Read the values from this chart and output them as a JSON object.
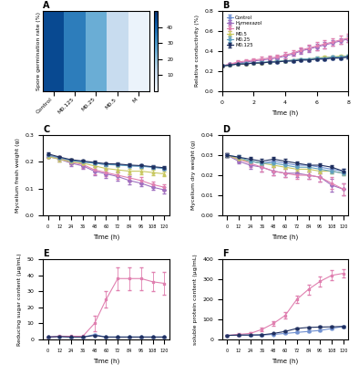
{
  "panel_A": {
    "title": "A",
    "categories": [
      "Control",
      "M0.125",
      "M0.25",
      "M0.5",
      "M"
    ],
    "values": [
      45,
      35,
      25,
      12,
      3
    ],
    "cmap_colors": [
      "#ffffff",
      "#c8d4f0",
      "#8fa8e0",
      "#4060c0",
      "#1020a0"
    ],
    "colorbar_ticks": [
      10,
      20,
      30,
      40
    ],
    "ylabel": "Spore germination rate (%)"
  },
  "panel_B": {
    "title": "B",
    "xlabel": "Time (h)",
    "ylabel": "Relative conductivity (%)",
    "ylim": [
      0.0,
      0.8
    ],
    "xlim": [
      0,
      8
    ],
    "time_points": [
      0,
      0.5,
      1,
      1.5,
      2,
      2.5,
      3,
      3.5,
      4,
      4.5,
      5,
      5.5,
      6,
      6.5,
      7,
      7.5,
      8
    ],
    "series": {
      "Control": {
        "color": "#7090d0",
        "marker": "o",
        "values": [
          0.25,
          0.26,
          0.27,
          0.27,
          0.28,
          0.28,
          0.29,
          0.29,
          0.3,
          0.3,
          0.31,
          0.31,
          0.32,
          0.32,
          0.33,
          0.33,
          0.34
        ],
        "errors": [
          0.01,
          0.01,
          0.01,
          0.01,
          0.01,
          0.01,
          0.01,
          0.01,
          0.01,
          0.01,
          0.01,
          0.01,
          0.01,
          0.01,
          0.01,
          0.01,
          0.01
        ]
      },
      "Hymexazol": {
        "color": "#a070c0",
        "marker": "D",
        "values": [
          0.25,
          0.27,
          0.28,
          0.29,
          0.3,
          0.31,
          0.32,
          0.33,
          0.35,
          0.37,
          0.4,
          0.42,
          0.44,
          0.46,
          0.48,
          0.5,
          0.52
        ],
        "errors": [
          0.01,
          0.01,
          0.02,
          0.02,
          0.02,
          0.02,
          0.02,
          0.02,
          0.02,
          0.02,
          0.03,
          0.03,
          0.03,
          0.03,
          0.03,
          0.03,
          0.03
        ]
      },
      "M": {
        "color": "#e080b0",
        "marker": "s",
        "values": [
          0.25,
          0.27,
          0.29,
          0.3,
          0.31,
          0.32,
          0.33,
          0.34,
          0.36,
          0.38,
          0.41,
          0.43,
          0.45,
          0.47,
          0.49,
          0.51,
          0.53
        ],
        "errors": [
          0.01,
          0.01,
          0.02,
          0.02,
          0.02,
          0.02,
          0.02,
          0.02,
          0.03,
          0.03,
          0.03,
          0.03,
          0.04,
          0.04,
          0.04,
          0.04,
          0.04
        ]
      },
      "M0.5": {
        "color": "#c8c860",
        "marker": "^",
        "values": [
          0.25,
          0.26,
          0.27,
          0.27,
          0.28,
          0.28,
          0.29,
          0.3,
          0.3,
          0.31,
          0.32,
          0.32,
          0.33,
          0.34,
          0.34,
          0.35,
          0.35
        ],
        "errors": [
          0.01,
          0.01,
          0.01,
          0.01,
          0.01,
          0.01,
          0.01,
          0.01,
          0.01,
          0.01,
          0.01,
          0.01,
          0.01,
          0.01,
          0.01,
          0.01,
          0.01
        ]
      },
      "M0.25": {
        "color": "#60a0c0",
        "marker": "o",
        "values": [
          0.25,
          0.26,
          0.27,
          0.28,
          0.28,
          0.29,
          0.29,
          0.3,
          0.3,
          0.31,
          0.32,
          0.32,
          0.33,
          0.33,
          0.34,
          0.34,
          0.35
        ],
        "errors": [
          0.01,
          0.01,
          0.01,
          0.01,
          0.01,
          0.01,
          0.01,
          0.01,
          0.01,
          0.01,
          0.01,
          0.01,
          0.01,
          0.01,
          0.01,
          0.01,
          0.01
        ]
      },
      "M0.125": {
        "color": "#203060",
        "marker": "o",
        "values": [
          0.25,
          0.26,
          0.27,
          0.27,
          0.28,
          0.28,
          0.29,
          0.29,
          0.3,
          0.3,
          0.31,
          0.31,
          0.32,
          0.32,
          0.33,
          0.33,
          0.34
        ],
        "errors": [
          0.01,
          0.01,
          0.01,
          0.01,
          0.01,
          0.01,
          0.01,
          0.01,
          0.01,
          0.01,
          0.01,
          0.01,
          0.01,
          0.01,
          0.01,
          0.01,
          0.01
        ]
      }
    }
  },
  "panel_C": {
    "title": "C",
    "xlabel": "Time (h)",
    "ylabel": "Mycelium fresh weight (g)",
    "ylim": [
      0.0,
      0.3
    ],
    "xlim": [
      -5,
      125
    ],
    "time_points": [
      0,
      12,
      24,
      36,
      48,
      60,
      72,
      84,
      96,
      108,
      120
    ],
    "series": {
      "Control": {
        "color": "#7090d0",
        "values": [
          0.225,
          0.215,
          0.205,
          0.2,
          0.195,
          0.19,
          0.19,
          0.185,
          0.185,
          0.18,
          0.175
        ],
        "errors": [
          0.005,
          0.005,
          0.005,
          0.005,
          0.005,
          0.005,
          0.005,
          0.005,
          0.005,
          0.005,
          0.005
        ]
      },
      "Hymexazol": {
        "color": "#a070c0",
        "values": [
          0.22,
          0.21,
          0.195,
          0.185,
          0.165,
          0.155,
          0.145,
          0.13,
          0.12,
          0.105,
          0.095
        ],
        "errors": [
          0.005,
          0.008,
          0.01,
          0.012,
          0.015,
          0.015,
          0.015,
          0.015,
          0.012,
          0.01,
          0.012
        ]
      },
      "M": {
        "color": "#e080b0",
        "values": [
          0.225,
          0.215,
          0.2,
          0.19,
          0.17,
          0.16,
          0.15,
          0.14,
          0.13,
          0.115,
          0.105
        ],
        "errors": [
          0.005,
          0.008,
          0.01,
          0.012,
          0.015,
          0.015,
          0.015,
          0.015,
          0.012,
          0.01,
          0.012
        ]
      },
      "M0.5": {
        "color": "#c8c860",
        "values": [
          0.22,
          0.21,
          0.2,
          0.195,
          0.185,
          0.175,
          0.17,
          0.165,
          0.165,
          0.16,
          0.155
        ],
        "errors": [
          0.005,
          0.008,
          0.01,
          0.01,
          0.01,
          0.01,
          0.01,
          0.01,
          0.01,
          0.01,
          0.01
        ]
      },
      "M0.25": {
        "color": "#60a0c0",
        "values": [
          0.225,
          0.215,
          0.205,
          0.2,
          0.195,
          0.19,
          0.188,
          0.185,
          0.183,
          0.18,
          0.175
        ],
        "errors": [
          0.005,
          0.005,
          0.005,
          0.005,
          0.005,
          0.005,
          0.005,
          0.005,
          0.005,
          0.005,
          0.005
        ]
      },
      "M0.125": {
        "color": "#203060",
        "values": [
          0.23,
          0.218,
          0.208,
          0.203,
          0.198,
          0.193,
          0.192,
          0.188,
          0.186,
          0.182,
          0.178
        ],
        "errors": [
          0.005,
          0.005,
          0.005,
          0.005,
          0.005,
          0.005,
          0.005,
          0.005,
          0.005,
          0.005,
          0.005
        ]
      }
    }
  },
  "panel_D": {
    "title": "D",
    "xlabel": "Time (h)",
    "ylabel": "Mycelium dry weight (g)",
    "ylim": [
      0.0,
      0.04
    ],
    "xlim": [
      -5,
      125
    ],
    "time_points": [
      0,
      12,
      24,
      36,
      48,
      60,
      72,
      84,
      96,
      108,
      120
    ],
    "series": {
      "Control": {
        "color": "#7090d0",
        "values": [
          0.03,
          0.028,
          0.027,
          0.026,
          0.027,
          0.026,
          0.025,
          0.025,
          0.024,
          0.023,
          0.022
        ],
        "errors": [
          0.001,
          0.001,
          0.001,
          0.001,
          0.001,
          0.001,
          0.001,
          0.001,
          0.001,
          0.001,
          0.001
        ]
      },
      "Hymexazol": {
        "color": "#a070c0",
        "values": [
          0.03,
          0.027,
          0.025,
          0.024,
          0.022,
          0.021,
          0.021,
          0.02,
          0.019,
          0.015,
          0.013
        ],
        "errors": [
          0.001,
          0.001,
          0.002,
          0.002,
          0.002,
          0.002,
          0.002,
          0.002,
          0.002,
          0.003,
          0.003
        ]
      },
      "M": {
        "color": "#e080b0",
        "values": [
          0.03,
          0.028,
          0.026,
          0.024,
          0.022,
          0.021,
          0.02,
          0.02,
          0.019,
          0.016,
          0.013
        ],
        "errors": [
          0.001,
          0.001,
          0.002,
          0.002,
          0.002,
          0.002,
          0.002,
          0.002,
          0.002,
          0.003,
          0.003
        ]
      },
      "M0.5": {
        "color": "#c8c860",
        "values": [
          0.03,
          0.028,
          0.027,
          0.026,
          0.025,
          0.024,
          0.023,
          0.023,
          0.022,
          0.022,
          0.021
        ],
        "errors": [
          0.001,
          0.001,
          0.001,
          0.001,
          0.001,
          0.001,
          0.001,
          0.001,
          0.001,
          0.001,
          0.001
        ]
      },
      "M0.25": {
        "color": "#60a0c0",
        "values": [
          0.03,
          0.029,
          0.027,
          0.026,
          0.026,
          0.025,
          0.024,
          0.024,
          0.023,
          0.022,
          0.021
        ],
        "errors": [
          0.001,
          0.001,
          0.001,
          0.001,
          0.001,
          0.001,
          0.001,
          0.001,
          0.001,
          0.001,
          0.001
        ]
      },
      "M0.125": {
        "color": "#203060",
        "values": [
          0.03,
          0.029,
          0.028,
          0.027,
          0.028,
          0.027,
          0.026,
          0.025,
          0.025,
          0.024,
          0.022
        ],
        "errors": [
          0.001,
          0.001,
          0.001,
          0.001,
          0.001,
          0.001,
          0.001,
          0.001,
          0.001,
          0.001,
          0.001
        ]
      }
    }
  },
  "panel_E": {
    "title": "E",
    "xlabel": "Time (h)",
    "ylabel": "Reducing sugar content (μg/mL)",
    "ylim": [
      0,
      50
    ],
    "xlim": [
      -5,
      125
    ],
    "time_points": [
      0,
      12,
      24,
      36,
      48,
      60,
      72,
      84,
      96,
      108,
      120
    ],
    "series": {
      "Control": {
        "color": "#7090d0",
        "values": [
          1.5,
          1.8,
          1.5,
          1.5,
          3.0,
          1.5,
          1.5,
          1.5,
          1.5,
          1.5,
          1.5
        ],
        "errors": [
          0.3,
          0.3,
          0.3,
          0.3,
          0.5,
          0.3,
          0.3,
          0.3,
          0.3,
          0.3,
          0.3
        ]
      },
      "M": {
        "color": "#e080b0",
        "values": [
          1.5,
          2.0,
          2.0,
          2.0,
          10.0,
          25.0,
          38.0,
          38.0,
          38.0,
          36.0,
          35.0
        ],
        "errors": [
          0.3,
          0.5,
          0.5,
          0.5,
          5.0,
          5.0,
          7.0,
          7.0,
          7.0,
          6.0,
          7.0
        ]
      },
      "M0.125": {
        "color": "#203060",
        "values": [
          1.5,
          1.8,
          1.5,
          1.5,
          2.5,
          1.5,
          1.5,
          1.5,
          1.5,
          1.5,
          1.5
        ],
        "errors": [
          0.3,
          0.3,
          0.3,
          0.3,
          0.5,
          0.3,
          0.3,
          0.3,
          0.3,
          0.3,
          0.3
        ]
      }
    }
  },
  "panel_F": {
    "title": "F",
    "xlabel": "Time (h)",
    "ylabel": "soluble protein content (μg/mL)",
    "ylim": [
      0,
      400
    ],
    "xlim": [
      -5,
      125
    ],
    "time_points": [
      0,
      12,
      24,
      36,
      48,
      60,
      72,
      84,
      96,
      108,
      120
    ],
    "series": {
      "Control": {
        "color": "#7090d0",
        "values": [
          20,
          22,
          22,
          22,
          25,
          30,
          35,
          40,
          45,
          55,
          65
        ],
        "errors": [
          3,
          3,
          3,
          3,
          3,
          3,
          4,
          4,
          5,
          5,
          5
        ]
      },
      "M": {
        "color": "#e080b0",
        "values": [
          20,
          25,
          30,
          50,
          80,
          120,
          200,
          250,
          290,
          320,
          330
        ],
        "errors": [
          3,
          5,
          5,
          8,
          10,
          15,
          20,
          25,
          25,
          25,
          20
        ]
      },
      "M0.125": {
        "color": "#203060",
        "values": [
          20,
          22,
          22,
          23,
          30,
          40,
          55,
          60,
          62,
          63,
          65
        ],
        "errors": [
          3,
          3,
          3,
          3,
          4,
          5,
          5,
          5,
          5,
          5,
          5
        ]
      }
    }
  },
  "legend_order": [
    "Control",
    "Hymexazol",
    "M",
    "M0.5",
    "M0.25",
    "M0.125"
  ],
  "series_colors": {
    "Control": "#7090d0",
    "Hymexazol": "#a070c0",
    "M": "#e080b0",
    "M0.5": "#c8c860",
    "M0.25": "#60a0c0",
    "M0.125": "#203060"
  },
  "series_markers": {
    "Control": "o",
    "Hymexazol": "D",
    "M": "s",
    "M0.5": "^",
    "M0.25": "o",
    "M0.125": "o"
  }
}
